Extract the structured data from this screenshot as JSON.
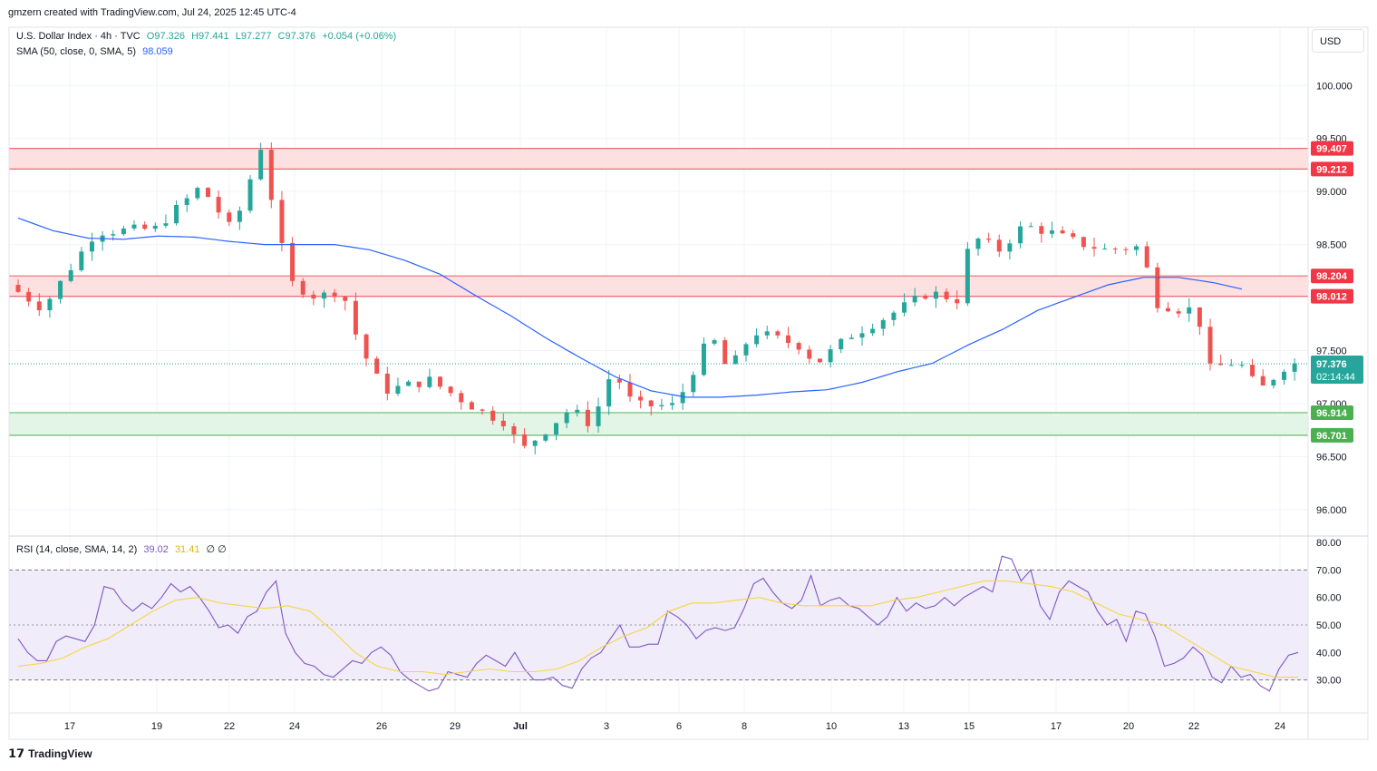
{
  "header": {
    "credit": "gmzern created with TradingView.com, Jul 24, 2025 12:45 UTC-4"
  },
  "legend": {
    "symbol": "U.S. Dollar Index · 4h · TVC",
    "open": "O97.326",
    "high": "H97.441",
    "low": "L97.277",
    "close": "C97.376",
    "change": "+0.054 (+0.06%)",
    "sma_label": "SMA (50, close, 0, SMA, 5)",
    "sma_value": "98.059",
    "rsi_label": "RSI (14, close, SMA, 14, 2)",
    "rsi_value": "39.02",
    "rsi_ma_value": "31.41",
    "rsi_extra": "∅ ∅"
  },
  "currency_button": "USD",
  "footer": {
    "brand": "TradingView",
    "logo_icon": "tradingview-logo-icon"
  },
  "colors": {
    "up": "#26a69a",
    "down": "#ef5350",
    "sma": "#2962ff",
    "rsi": "#7e57c2",
    "rsi_ma": "#f7d63f",
    "resistance_fill": "#fde0e0",
    "resistance_line": "#f06a70",
    "support_fill": "#e3f5e6",
    "support_line": "#66bb6a",
    "rsi_band": "#f0ecfa"
  },
  "chart_data": [
    {
      "type": "candlestick",
      "title": "U.S. Dollar Index · 4h · TVC",
      "ylim": [
        95.75,
        100.55
      ],
      "y_ticks": [
        100.0,
        99.5,
        99.0,
        98.5,
        98.0,
        97.5,
        97.0,
        96.5,
        96.0
      ],
      "x_ticks": [
        "17",
        "19",
        "22",
        "24",
        "26",
        "29",
        "Jul",
        "3",
        "6",
        "8",
        "10",
        "13",
        "15",
        "17",
        "20",
        "22",
        "24"
      ],
      "zones": [
        {
          "kind": "resistance",
          "top": 99.407,
          "bottom": 99.212,
          "top_label": "99.407",
          "bottom_label": "99.212"
        },
        {
          "kind": "resistance",
          "top": 98.204,
          "bottom": 98.012,
          "top_label": "98.204",
          "bottom_label": "98.012"
        },
        {
          "kind": "support",
          "top": 96.914,
          "bottom": 96.701,
          "top_label": "96.914",
          "bottom_label": "96.701"
        }
      ],
      "last_price": {
        "value": 97.376,
        "label": "97.376",
        "countdown": "02:14:44"
      },
      "anchors": [
        {
          "x": 0,
          "v": 98.12
        },
        {
          "x": 10,
          "v": 97.9
        },
        {
          "x": 25,
          "v": 98.62
        },
        {
          "x": 42,
          "v": 98.65
        },
        {
          "x": 55,
          "v": 99.05
        },
        {
          "x": 64,
          "v": 98.62
        },
        {
          "x": 72,
          "v": 99.42
        },
        {
          "x": 80,
          "v": 98.15
        },
        {
          "x": 88,
          "v": 98.0
        },
        {
          "x": 95,
          "v": 98.08
        },
        {
          "x": 100,
          "v": 97.55
        },
        {
          "x": 107,
          "v": 97.12
        },
        {
          "x": 120,
          "v": 97.22
        },
        {
          "x": 135,
          "v": 96.92
        },
        {
          "x": 142,
          "v": 96.82
        },
        {
          "x": 146,
          "v": 96.55
        },
        {
          "x": 160,
          "v": 96.95
        },
        {
          "x": 166,
          "v": 96.8
        },
        {
          "x": 172,
          "v": 97.32
        },
        {
          "x": 178,
          "v": 96.98
        },
        {
          "x": 190,
          "v": 96.98
        },
        {
          "x": 200,
          "v": 97.65
        },
        {
          "x": 205,
          "v": 97.3
        },
        {
          "x": 212,
          "v": 97.68
        },
        {
          "x": 225,
          "v": 97.55
        },
        {
          "x": 230,
          "v": 97.38
        },
        {
          "x": 240,
          "v": 97.65
        },
        {
          "x": 250,
          "v": 97.82
        },
        {
          "x": 262,
          "v": 98.05
        },
        {
          "x": 270,
          "v": 97.98
        },
        {
          "x": 274,
          "v": 98.58
        },
        {
          "x": 282,
          "v": 98.45
        },
        {
          "x": 289,
          "v": 98.68
        },
        {
          "x": 296,
          "v": 98.62
        },
        {
          "x": 304,
          "v": 98.52
        },
        {
          "x": 312,
          "v": 98.45
        },
        {
          "x": 322,
          "v": 98.48
        },
        {
          "x": 327,
          "v": 97.95
        },
        {
          "x": 334,
          "v": 97.88
        },
        {
          "x": 338,
          "v": 97.9
        },
        {
          "x": 342,
          "v": 97.33
        },
        {
          "x": 350,
          "v": 97.4
        },
        {
          "x": 356,
          "v": 97.12
        },
        {
          "x": 364,
          "v": 97.376
        }
      ],
      "sma_anchors": [
        {
          "x": 0,
          "v": 98.75
        },
        {
          "x": 10,
          "v": 98.63
        },
        {
          "x": 20,
          "v": 98.56
        },
        {
          "x": 30,
          "v": 98.55
        },
        {
          "x": 40,
          "v": 98.58
        },
        {
          "x": 50,
          "v": 98.57
        },
        {
          "x": 60,
          "v": 98.53
        },
        {
          "x": 70,
          "v": 98.5
        },
        {
          "x": 80,
          "v": 98.5
        },
        {
          "x": 90,
          "v": 98.5
        },
        {
          "x": 100,
          "v": 98.45
        },
        {
          "x": 110,
          "v": 98.35
        },
        {
          "x": 120,
          "v": 98.22
        },
        {
          "x": 130,
          "v": 98.02
        },
        {
          "x": 140,
          "v": 97.83
        },
        {
          "x": 150,
          "v": 97.62
        },
        {
          "x": 160,
          "v": 97.43
        },
        {
          "x": 170,
          "v": 97.25
        },
        {
          "x": 180,
          "v": 97.12
        },
        {
          "x": 190,
          "v": 97.06
        },
        {
          "x": 200,
          "v": 97.06
        },
        {
          "x": 210,
          "v": 97.08
        },
        {
          "x": 220,
          "v": 97.11
        },
        {
          "x": 230,
          "v": 97.13
        },
        {
          "x": 240,
          "v": 97.2
        },
        {
          "x": 250,
          "v": 97.3
        },
        {
          "x": 260,
          "v": 97.38
        },
        {
          "x": 270,
          "v": 97.55
        },
        {
          "x": 280,
          "v": 97.7
        },
        {
          "x": 290,
          "v": 97.88
        },
        {
          "x": 300,
          "v": 98.0
        },
        {
          "x": 310,
          "v": 98.12
        },
        {
          "x": 320,
          "v": 98.19
        },
        {
          "x": 330,
          "v": 98.19
        },
        {
          "x": 340,
          "v": 98.14
        },
        {
          "x": 348,
          "v": 98.08
        }
      ],
      "n_bars": 365
    },
    {
      "type": "line",
      "title": "RSI (14, close, SMA, 14, 2)",
      "ylim": [
        18,
        82
      ],
      "y_ticks": [
        80.0,
        70.0,
        60.0,
        50.0,
        40.0,
        30.0
      ],
      "band": [
        30,
        70
      ],
      "midline": 50,
      "series": [
        {
          "name": "RSI",
          "values": [
            45,
            40,
            37,
            37,
            44,
            46,
            45,
            44,
            50,
            64,
            63,
            58,
            55,
            58,
            56,
            60,
            65,
            62,
            64,
            60,
            55,
            49,
            50,
            47,
            53,
            55,
            62,
            66,
            47,
            40,
            36,
            35,
            32,
            31,
            34,
            37,
            36,
            40,
            42,
            39,
            33,
            30,
            28,
            26,
            27,
            33,
            32,
            31,
            36,
            39,
            37,
            35,
            40,
            34,
            30,
            30,
            31,
            28,
            27,
            34,
            38,
            40,
            45,
            50,
            42,
            42,
            43,
            43,
            55,
            53,
            50,
            45,
            48,
            49,
            48,
            49,
            56,
            65,
            67,
            62,
            58,
            56,
            59,
            68,
            57,
            59,
            60,
            57,
            56,
            53,
            50,
            53,
            60,
            55,
            58,
            56,
            57,
            60,
            57,
            60,
            62,
            64,
            62,
            75,
            74,
            66,
            70,
            57,
            52,
            62,
            66,
            64,
            62,
            55,
            50,
            52,
            44,
            55,
            54,
            46,
            35,
            36,
            38,
            42,
            39,
            31,
            29,
            35,
            31,
            32,
            28,
            26,
            34,
            39,
            40
          ]
        },
        {
          "name": "RSI-based MA",
          "values": [
            35,
            36,
            38,
            42,
            45,
            50,
            55,
            59,
            60,
            58,
            57,
            56,
            57,
            55,
            48,
            40,
            35,
            33,
            33,
            32,
            33,
            34,
            33,
            33,
            34,
            37,
            42,
            46,
            49,
            55,
            58,
            58,
            59,
            60,
            58,
            57,
            57,
            57,
            57,
            59,
            60,
            62,
            64,
            66,
            66,
            65,
            64,
            62,
            58,
            54,
            52,
            50,
            45,
            40,
            35,
            33,
            31,
            31
          ]
        }
      ],
      "x_range": [
        0,
        364
      ]
    }
  ]
}
